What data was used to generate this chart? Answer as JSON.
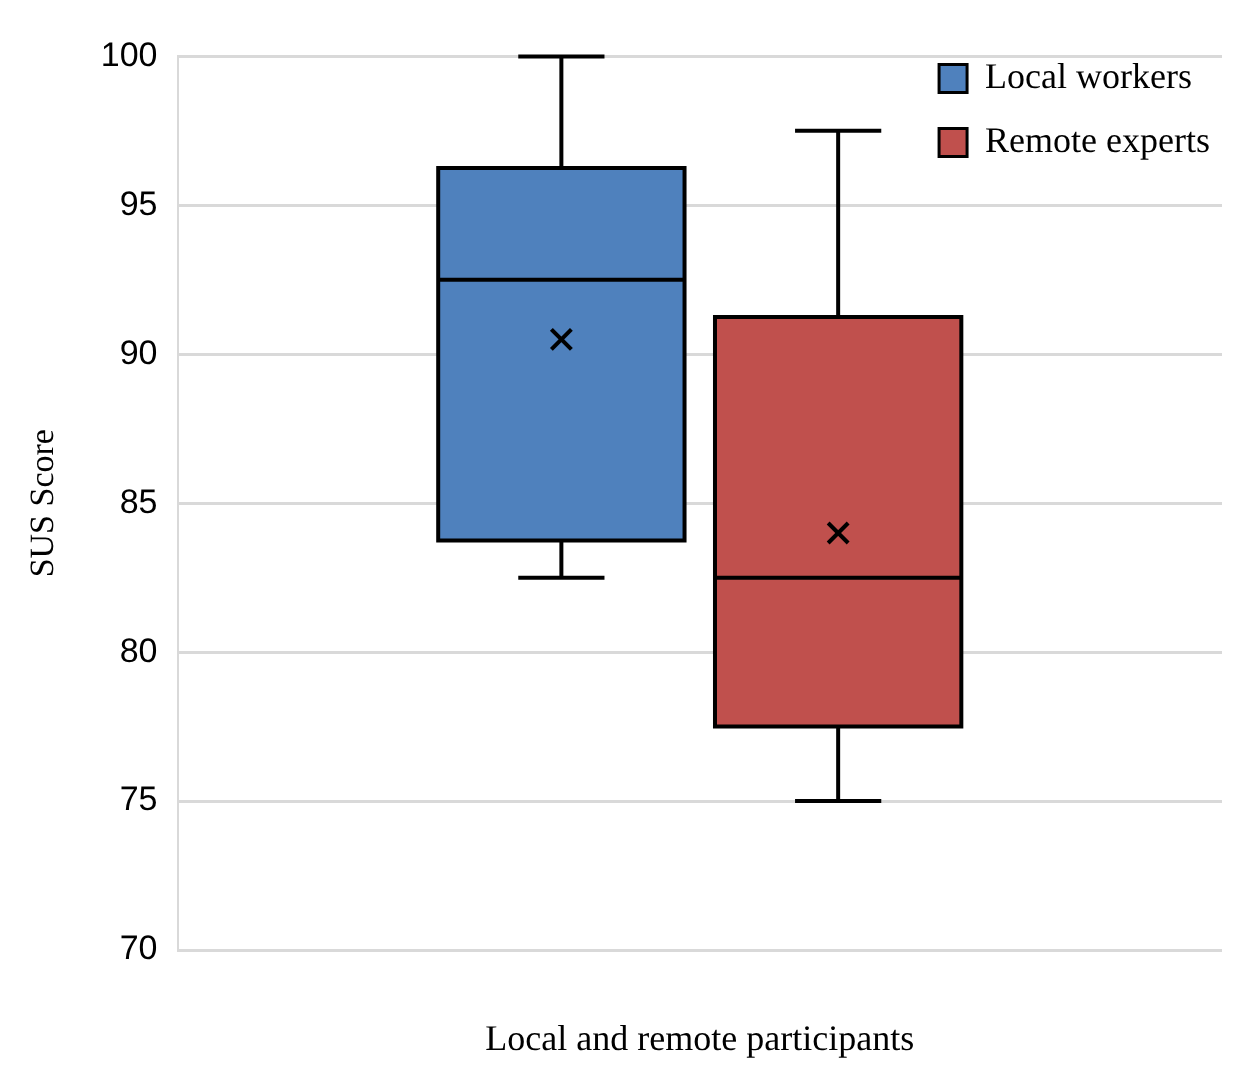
{
  "chart_data": {
    "type": "box",
    "xlabel": "Local and remote participants",
    "ylabel": "SUS Score",
    "categories": [
      null
    ],
    "series": [
      {
        "name": "Local workers",
        "color": "#4f81bd",
        "boxes": [
          {
            "low": 82.5,
            "q1": 83.75,
            "median": 92.5,
            "q3": 96.25,
            "high": 100,
            "mean": 90.5
          }
        ]
      },
      {
        "name": "Remote experts",
        "color": "#c0504d",
        "boxes": [
          {
            "low": 75,
            "q1": 77.5,
            "median": 82.5,
            "q3": 91.25,
            "high": 97.5,
            "mean": 84
          }
        ]
      }
    ],
    "ylim": [
      70,
      100
    ],
    "yticks": [
      70,
      75,
      80,
      85,
      90,
      95,
      100
    ],
    "grid": "y",
    "legend": "top right"
  }
}
